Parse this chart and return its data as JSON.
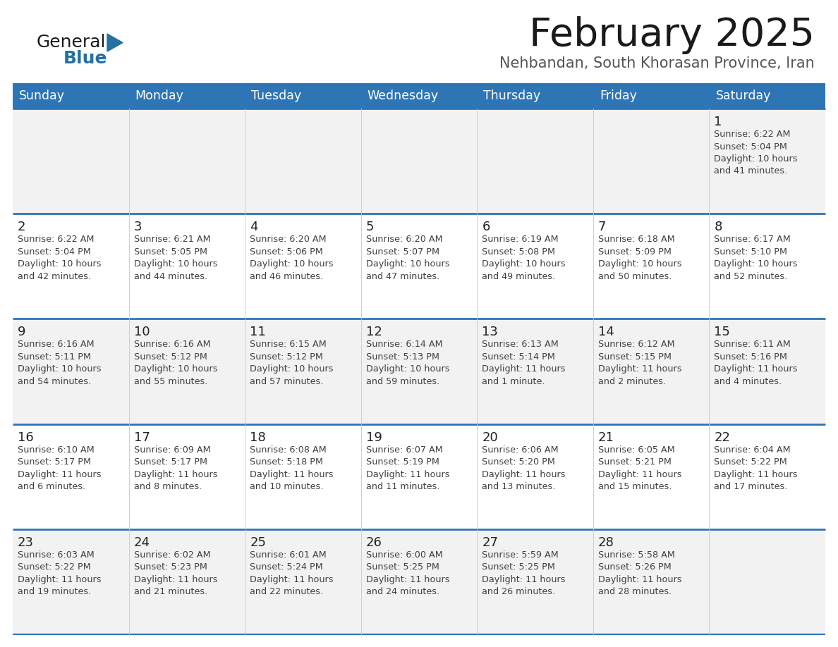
{
  "title": "February 2025",
  "subtitle": "Nehbandan, South Khorasan Province, Iran",
  "weekdays": [
    "Sunday",
    "Monday",
    "Tuesday",
    "Wednesday",
    "Thursday",
    "Friday",
    "Saturday"
  ],
  "header_bg": "#2E75B6",
  "header_text": "#FFFFFF",
  "row_bg_odd": "#F2F2F2",
  "row_bg_even": "#FFFFFF",
  "cell_text_color": "#404040",
  "day_num_color": "#222222",
  "border_color": "#2E75B6",
  "logo_general_color": "#1a1a1a",
  "logo_blue_color": "#2471A3",
  "calendar_data": [
    [
      null,
      null,
      null,
      null,
      null,
      null,
      {
        "day": 1,
        "sunrise": "6:22 AM",
        "sunset": "5:04 PM",
        "daylight": "10 hours\nand 41 minutes."
      }
    ],
    [
      {
        "day": 2,
        "sunrise": "6:22 AM",
        "sunset": "5:04 PM",
        "daylight": "10 hours\nand 42 minutes."
      },
      {
        "day": 3,
        "sunrise": "6:21 AM",
        "sunset": "5:05 PM",
        "daylight": "10 hours\nand 44 minutes."
      },
      {
        "day": 4,
        "sunrise": "6:20 AM",
        "sunset": "5:06 PM",
        "daylight": "10 hours\nand 46 minutes."
      },
      {
        "day": 5,
        "sunrise": "6:20 AM",
        "sunset": "5:07 PM",
        "daylight": "10 hours\nand 47 minutes."
      },
      {
        "day": 6,
        "sunrise": "6:19 AM",
        "sunset": "5:08 PM",
        "daylight": "10 hours\nand 49 minutes."
      },
      {
        "day": 7,
        "sunrise": "6:18 AM",
        "sunset": "5:09 PM",
        "daylight": "10 hours\nand 50 minutes."
      },
      {
        "day": 8,
        "sunrise": "6:17 AM",
        "sunset": "5:10 PM",
        "daylight": "10 hours\nand 52 minutes."
      }
    ],
    [
      {
        "day": 9,
        "sunrise": "6:16 AM",
        "sunset": "5:11 PM",
        "daylight": "10 hours\nand 54 minutes."
      },
      {
        "day": 10,
        "sunrise": "6:16 AM",
        "sunset": "5:12 PM",
        "daylight": "10 hours\nand 55 minutes."
      },
      {
        "day": 11,
        "sunrise": "6:15 AM",
        "sunset": "5:12 PM",
        "daylight": "10 hours\nand 57 minutes."
      },
      {
        "day": 12,
        "sunrise": "6:14 AM",
        "sunset": "5:13 PM",
        "daylight": "10 hours\nand 59 minutes."
      },
      {
        "day": 13,
        "sunrise": "6:13 AM",
        "sunset": "5:14 PM",
        "daylight": "11 hours\nand 1 minute."
      },
      {
        "day": 14,
        "sunrise": "6:12 AM",
        "sunset": "5:15 PM",
        "daylight": "11 hours\nand 2 minutes."
      },
      {
        "day": 15,
        "sunrise": "6:11 AM",
        "sunset": "5:16 PM",
        "daylight": "11 hours\nand 4 minutes."
      }
    ],
    [
      {
        "day": 16,
        "sunrise": "6:10 AM",
        "sunset": "5:17 PM",
        "daylight": "11 hours\nand 6 minutes."
      },
      {
        "day": 17,
        "sunrise": "6:09 AM",
        "sunset": "5:17 PM",
        "daylight": "11 hours\nand 8 minutes."
      },
      {
        "day": 18,
        "sunrise": "6:08 AM",
        "sunset": "5:18 PM",
        "daylight": "11 hours\nand 10 minutes."
      },
      {
        "day": 19,
        "sunrise": "6:07 AM",
        "sunset": "5:19 PM",
        "daylight": "11 hours\nand 11 minutes."
      },
      {
        "day": 20,
        "sunrise": "6:06 AM",
        "sunset": "5:20 PM",
        "daylight": "11 hours\nand 13 minutes."
      },
      {
        "day": 21,
        "sunrise": "6:05 AM",
        "sunset": "5:21 PM",
        "daylight": "11 hours\nand 15 minutes."
      },
      {
        "day": 22,
        "sunrise": "6:04 AM",
        "sunset": "5:22 PM",
        "daylight": "11 hours\nand 17 minutes."
      }
    ],
    [
      {
        "day": 23,
        "sunrise": "6:03 AM",
        "sunset": "5:22 PM",
        "daylight": "11 hours\nand 19 minutes."
      },
      {
        "day": 24,
        "sunrise": "6:02 AM",
        "sunset": "5:23 PM",
        "daylight": "11 hours\nand 21 minutes."
      },
      {
        "day": 25,
        "sunrise": "6:01 AM",
        "sunset": "5:24 PM",
        "daylight": "11 hours\nand 22 minutes."
      },
      {
        "day": 26,
        "sunrise": "6:00 AM",
        "sunset": "5:25 PM",
        "daylight": "11 hours\nand 24 minutes."
      },
      {
        "day": 27,
        "sunrise": "5:59 AM",
        "sunset": "5:25 PM",
        "daylight": "11 hours\nand 26 minutes."
      },
      {
        "day": 28,
        "sunrise": "5:58 AM",
        "sunset": "5:26 PM",
        "daylight": "11 hours\nand 28 minutes."
      },
      null
    ]
  ]
}
